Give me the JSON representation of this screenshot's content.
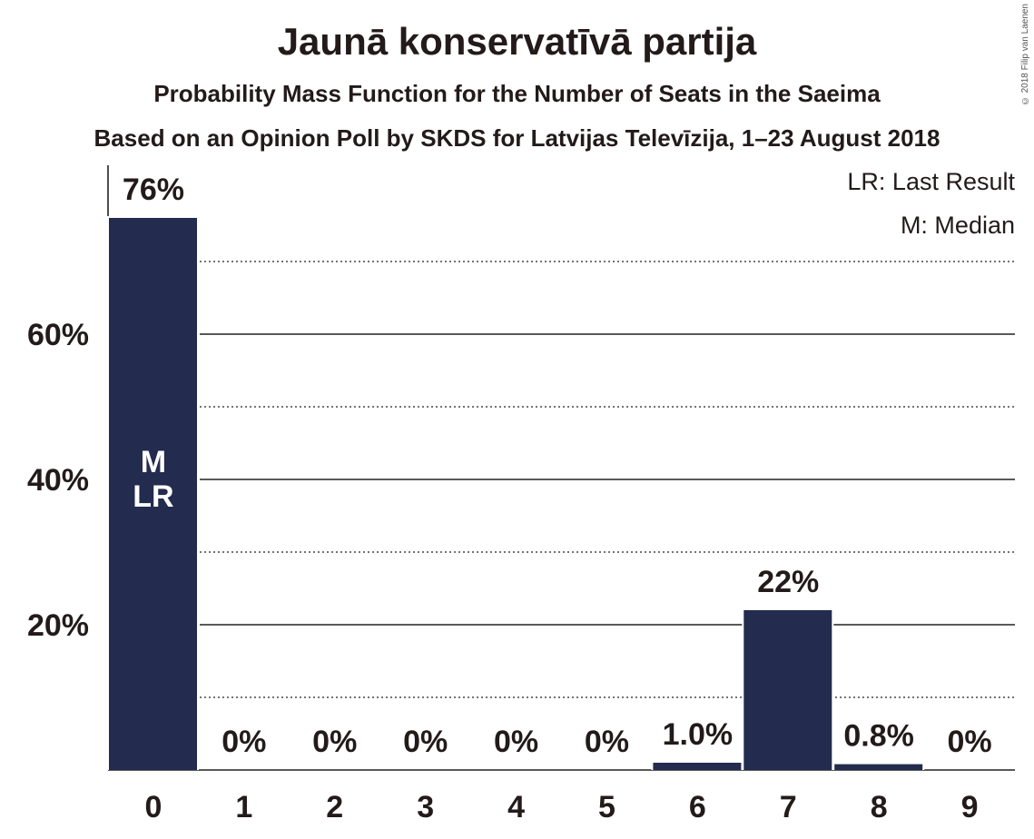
{
  "title": "Jaunā konservatīvā partija",
  "subtitle1": "Probability Mass Function for the Number of Seats in the Saeima",
  "subtitle2": "Based on an Opinion Poll by SKDS for Latvijas Televīzija, 1–23 August 2018",
  "copyright": "© 2018 Filip van Laenen",
  "legend": {
    "last_result": "LR: Last Result",
    "median": "M: Median"
  },
  "colors": {
    "bar": "#232b4e",
    "text": "#231a1a"
  },
  "chart_data": {
    "type": "bar",
    "categories": [
      "0",
      "1",
      "2",
      "3",
      "4",
      "5",
      "6",
      "7",
      "8",
      "9"
    ],
    "values": [
      76,
      0,
      0,
      0,
      0,
      0,
      1.0,
      22,
      0.8,
      0
    ],
    "value_labels": [
      "76%",
      "0%",
      "0%",
      "0%",
      "0%",
      "0%",
      "1.0%",
      "22%",
      "0.8%",
      "0%"
    ],
    "yticks": [
      20,
      40,
      60
    ],
    "ytick_labels": [
      "20%",
      "40%",
      "60%"
    ],
    "minor_gridlines": [
      10,
      30,
      50,
      70
    ],
    "ylim": [
      0,
      83
    ],
    "bar_markers": [
      {
        "category": "0",
        "labels": [
          "M",
          "LR"
        ]
      }
    ],
    "legend_position": "top-right"
  }
}
